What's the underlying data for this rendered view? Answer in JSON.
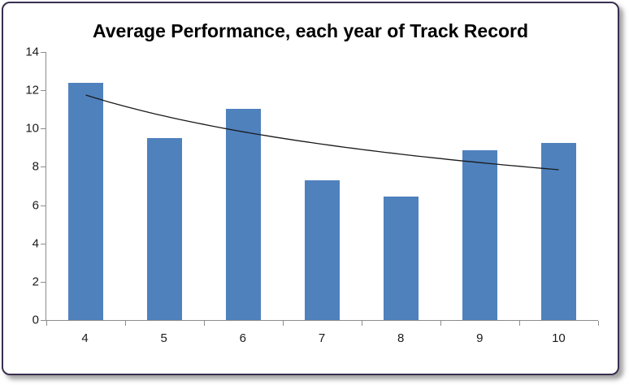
{
  "chart_data": {
    "type": "bar",
    "title": "Average Performance, each year of Track Record",
    "xlabel": "",
    "ylabel": "",
    "categories": [
      "4",
      "5",
      "6",
      "7",
      "8",
      "9",
      "10"
    ],
    "values": [
      12.4,
      9.5,
      11.05,
      7.3,
      6.45,
      8.85,
      9.25
    ],
    "ylim": [
      0,
      14
    ],
    "ytick_step": 2,
    "x_range": [
      4,
      10
    ],
    "grid": "off",
    "legend": "none",
    "bar_color": "#4F81BD",
    "axis_color": "#8c8c8c",
    "trendline": {
      "type": "power",
      "coefficient": 21.64,
      "exponent": -0.4404,
      "start_value": 11.75,
      "end_value": 7.85,
      "color": "#1a1a1a"
    }
  }
}
